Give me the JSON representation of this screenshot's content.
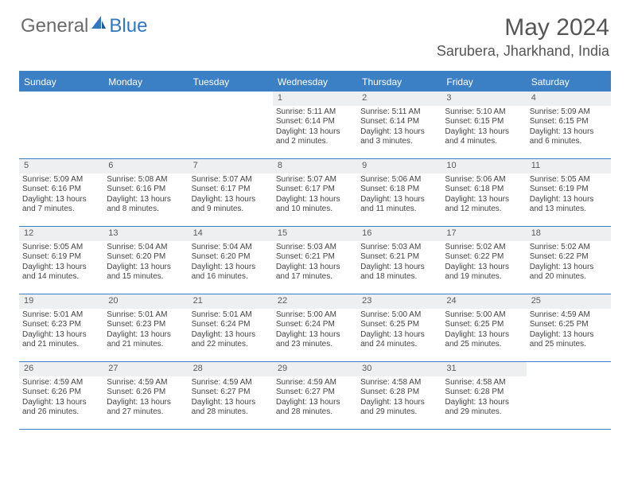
{
  "brand": {
    "part1": "General",
    "part2": "Blue"
  },
  "colors": {
    "brand_blue": "#2f78c4",
    "header_bg": "#3b7fc4",
    "header_text": "#ffffff",
    "daynum_bg": "#edeff1",
    "border": "#3b7fc4",
    "text": "#444444",
    "title": "#555555"
  },
  "title": "May 2024",
  "location": "Sarubera, Jharkhand, India",
  "day_names": [
    "Sunday",
    "Monday",
    "Tuesday",
    "Wednesday",
    "Thursday",
    "Friday",
    "Saturday"
  ],
  "weeks": [
    [
      {
        "empty": true
      },
      {
        "empty": true
      },
      {
        "empty": true
      },
      {
        "num": "1",
        "sunrise": "Sunrise: 5:11 AM",
        "sunset": "Sunset: 6:14 PM",
        "daylight": "Daylight: 13 hours and 2 minutes."
      },
      {
        "num": "2",
        "sunrise": "Sunrise: 5:11 AM",
        "sunset": "Sunset: 6:14 PM",
        "daylight": "Daylight: 13 hours and 3 minutes."
      },
      {
        "num": "3",
        "sunrise": "Sunrise: 5:10 AM",
        "sunset": "Sunset: 6:15 PM",
        "daylight": "Daylight: 13 hours and 4 minutes."
      },
      {
        "num": "4",
        "sunrise": "Sunrise: 5:09 AM",
        "sunset": "Sunset: 6:15 PM",
        "daylight": "Daylight: 13 hours and 6 minutes."
      }
    ],
    [
      {
        "num": "5",
        "sunrise": "Sunrise: 5:09 AM",
        "sunset": "Sunset: 6:16 PM",
        "daylight": "Daylight: 13 hours and 7 minutes."
      },
      {
        "num": "6",
        "sunrise": "Sunrise: 5:08 AM",
        "sunset": "Sunset: 6:16 PM",
        "daylight": "Daylight: 13 hours and 8 minutes."
      },
      {
        "num": "7",
        "sunrise": "Sunrise: 5:07 AM",
        "sunset": "Sunset: 6:17 PM",
        "daylight": "Daylight: 13 hours and 9 minutes."
      },
      {
        "num": "8",
        "sunrise": "Sunrise: 5:07 AM",
        "sunset": "Sunset: 6:17 PM",
        "daylight": "Daylight: 13 hours and 10 minutes."
      },
      {
        "num": "9",
        "sunrise": "Sunrise: 5:06 AM",
        "sunset": "Sunset: 6:18 PM",
        "daylight": "Daylight: 13 hours and 11 minutes."
      },
      {
        "num": "10",
        "sunrise": "Sunrise: 5:06 AM",
        "sunset": "Sunset: 6:18 PM",
        "daylight": "Daylight: 13 hours and 12 minutes."
      },
      {
        "num": "11",
        "sunrise": "Sunrise: 5:05 AM",
        "sunset": "Sunset: 6:19 PM",
        "daylight": "Daylight: 13 hours and 13 minutes."
      }
    ],
    [
      {
        "num": "12",
        "sunrise": "Sunrise: 5:05 AM",
        "sunset": "Sunset: 6:19 PM",
        "daylight": "Daylight: 13 hours and 14 minutes."
      },
      {
        "num": "13",
        "sunrise": "Sunrise: 5:04 AM",
        "sunset": "Sunset: 6:20 PM",
        "daylight": "Daylight: 13 hours and 15 minutes."
      },
      {
        "num": "14",
        "sunrise": "Sunrise: 5:04 AM",
        "sunset": "Sunset: 6:20 PM",
        "daylight": "Daylight: 13 hours and 16 minutes."
      },
      {
        "num": "15",
        "sunrise": "Sunrise: 5:03 AM",
        "sunset": "Sunset: 6:21 PM",
        "daylight": "Daylight: 13 hours and 17 minutes."
      },
      {
        "num": "16",
        "sunrise": "Sunrise: 5:03 AM",
        "sunset": "Sunset: 6:21 PM",
        "daylight": "Daylight: 13 hours and 18 minutes."
      },
      {
        "num": "17",
        "sunrise": "Sunrise: 5:02 AM",
        "sunset": "Sunset: 6:22 PM",
        "daylight": "Daylight: 13 hours and 19 minutes."
      },
      {
        "num": "18",
        "sunrise": "Sunrise: 5:02 AM",
        "sunset": "Sunset: 6:22 PM",
        "daylight": "Daylight: 13 hours and 20 minutes."
      }
    ],
    [
      {
        "num": "19",
        "sunrise": "Sunrise: 5:01 AM",
        "sunset": "Sunset: 6:23 PM",
        "daylight": "Daylight: 13 hours and 21 minutes."
      },
      {
        "num": "20",
        "sunrise": "Sunrise: 5:01 AM",
        "sunset": "Sunset: 6:23 PM",
        "daylight": "Daylight: 13 hours and 21 minutes."
      },
      {
        "num": "21",
        "sunrise": "Sunrise: 5:01 AM",
        "sunset": "Sunset: 6:24 PM",
        "daylight": "Daylight: 13 hours and 22 minutes."
      },
      {
        "num": "22",
        "sunrise": "Sunrise: 5:00 AM",
        "sunset": "Sunset: 6:24 PM",
        "daylight": "Daylight: 13 hours and 23 minutes."
      },
      {
        "num": "23",
        "sunrise": "Sunrise: 5:00 AM",
        "sunset": "Sunset: 6:25 PM",
        "daylight": "Daylight: 13 hours and 24 minutes."
      },
      {
        "num": "24",
        "sunrise": "Sunrise: 5:00 AM",
        "sunset": "Sunset: 6:25 PM",
        "daylight": "Daylight: 13 hours and 25 minutes."
      },
      {
        "num": "25",
        "sunrise": "Sunrise: 4:59 AM",
        "sunset": "Sunset: 6:25 PM",
        "daylight": "Daylight: 13 hours and 25 minutes."
      }
    ],
    [
      {
        "num": "26",
        "sunrise": "Sunrise: 4:59 AM",
        "sunset": "Sunset: 6:26 PM",
        "daylight": "Daylight: 13 hours and 26 minutes."
      },
      {
        "num": "27",
        "sunrise": "Sunrise: 4:59 AM",
        "sunset": "Sunset: 6:26 PM",
        "daylight": "Daylight: 13 hours and 27 minutes."
      },
      {
        "num": "28",
        "sunrise": "Sunrise: 4:59 AM",
        "sunset": "Sunset: 6:27 PM",
        "daylight": "Daylight: 13 hours and 28 minutes."
      },
      {
        "num": "29",
        "sunrise": "Sunrise: 4:59 AM",
        "sunset": "Sunset: 6:27 PM",
        "daylight": "Daylight: 13 hours and 28 minutes."
      },
      {
        "num": "30",
        "sunrise": "Sunrise: 4:58 AM",
        "sunset": "Sunset: 6:28 PM",
        "daylight": "Daylight: 13 hours and 29 minutes."
      },
      {
        "num": "31",
        "sunrise": "Sunrise: 4:58 AM",
        "sunset": "Sunset: 6:28 PM",
        "daylight": "Daylight: 13 hours and 29 minutes."
      },
      {
        "empty": true
      }
    ]
  ]
}
